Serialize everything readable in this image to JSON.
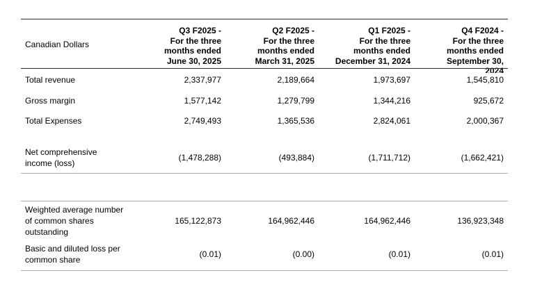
{
  "table": {
    "corner_label": "Canadian Dollars",
    "columns": [
      {
        "id": "q3-f2025",
        "header": "Q3 F2025 -\nFor the three\nmonths ended\nJune 30, 2025"
      },
      {
        "id": "q2-f2025",
        "header": "Q2 F2025 -\nFor the three\nmonths ended\nMarch 31, 2025"
      },
      {
        "id": "q1-f2025",
        "header": "Q1 F2025 -\nFor the three\nmonths ended\nDecember 31, 2024"
      },
      {
        "id": "q4-f2024",
        "header": "Q4 F2024 -\nFor the three\nmonths ended\nSeptember 30,\n2024"
      }
    ],
    "rows": [
      {
        "label": "Total revenue",
        "values": [
          "2,337,977",
          "2,189,664",
          "1,973,697",
          "1,545,810"
        ]
      },
      {
        "label": "Gross margin",
        "values": [
          "1,577,142",
          "1,279,799",
          "1,344,216",
          "925,672"
        ]
      },
      {
        "label": "Total Expenses",
        "values": [
          "2,749,493",
          "1,365,536",
          "2,824,061",
          "2,000,367"
        ]
      },
      {
        "label": "Net comprehensive\nincome (loss)",
        "values": [
          "(1,478,288)",
          "(493,884)",
          "(1,711,712)",
          "(1,662,421)"
        ]
      },
      {
        "label": "Weighted average number\nof common shares\noutstanding",
        "values": [
          "165,122,873",
          "164,962,446",
          "164,962,446",
          "136,923,348"
        ]
      },
      {
        "label": "Basic and diluted loss per\ncommon share",
        "values": [
          "(0.01)",
          "(0.00)",
          "(0.01)",
          "(0.01)"
        ]
      }
    ],
    "colors": {
      "background": "#ffffff",
      "text": "#000000",
      "rule_dark": "#2a2a2a",
      "rule_gray": "#a9a9a9"
    }
  }
}
